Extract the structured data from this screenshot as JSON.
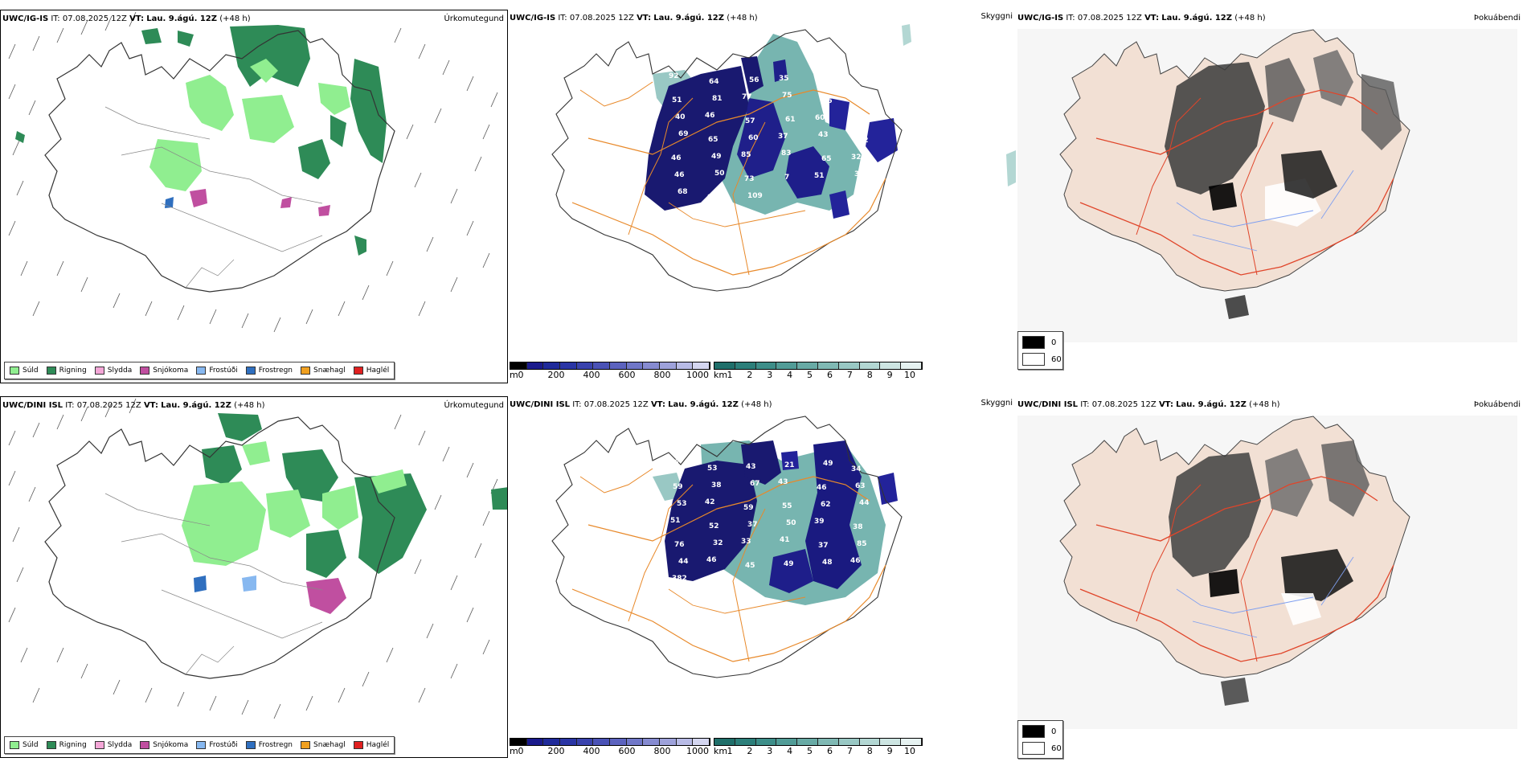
{
  "rows": [
    {
      "model": "UWC/IG-IS",
      "it_label": "IT:",
      "it_value": "07.08.2025 12Z",
      "vt_label": "VT:",
      "vt_value": "Lau. 9.ágú. 12Z",
      "lead": "(+48 h)",
      "labels": [
        "92",
        "64",
        "56",
        "35",
        "36",
        "38",
        "51",
        "81",
        "77",
        "75",
        "46",
        "33",
        "40",
        "46",
        "57",
        "61",
        "60",
        "48",
        "69",
        "65",
        "60",
        "37",
        "43",
        "42",
        "46",
        "49",
        "85",
        "83",
        "65",
        "32",
        "46",
        "50",
        "73",
        "7",
        "51",
        "38",
        "68",
        "94",
        "109"
      ]
    },
    {
      "model": "UWC/DINI ISL",
      "it_label": "IT:",
      "it_value": "07.08.2025 12Z",
      "vt_label": "VT:",
      "vt_value": "Lau. 9.ágú. 12Z",
      "lead": "(+48 h)",
      "labels": [
        "46",
        "53",
        "43",
        "21",
        "49",
        "34",
        "59",
        "38",
        "67",
        "43",
        "46",
        "63",
        "53",
        "42",
        "59",
        "55",
        "62",
        "44",
        "51",
        "52",
        "37",
        "50",
        "39",
        "38",
        "76",
        "32",
        "33",
        "41",
        "37",
        "85",
        "44",
        "46",
        "45",
        "49",
        "48",
        "46",
        "382",
        "75"
      ]
    }
  ],
  "panel_titles": {
    "precip": "Úrkomutegund",
    "visibility": "Skyggni",
    "fog": "Þokuábendi"
  },
  "precip_legend": [
    {
      "label": "Súld",
      "color": "#90ee90"
    },
    {
      "label": "Rigning",
      "color": "#2e8b57"
    },
    {
      "label": "Slydda",
      "color": "#f4a6d7"
    },
    {
      "label": "Snjókoma",
      "color": "#c04fa0"
    },
    {
      "label": "Frostúði",
      "color": "#87b8f0"
    },
    {
      "label": "Frostregn",
      "color": "#2f6fbf"
    },
    {
      "label": "Snæhagl",
      "color": "#f0a020"
    },
    {
      "label": "Haglél",
      "color": "#e02020"
    }
  ],
  "colorbar_m": {
    "unit": "m",
    "ticks": [
      "0",
      "200",
      "400",
      "600",
      "800",
      "1000"
    ],
    "colors": [
      "#000000",
      "#1a1a8c",
      "#1f2a9a",
      "#2a35a5",
      "#3942ad",
      "#4a52b6",
      "#5c63bf",
      "#7077c8",
      "#868bd1",
      "#9ea2db",
      "#b8bbe6",
      "#d4d6f0"
    ]
  },
  "colorbar_km": {
    "unit": "km",
    "ticks": [
      "1",
      "2",
      "3",
      "4",
      "5",
      "6",
      "7",
      "8",
      "9",
      "10"
    ],
    "colors": [
      "#1f6f6a",
      "#2c7f7a",
      "#3d8e89",
      "#519c97",
      "#68aaa5",
      "#80b9b4",
      "#99c8c4",
      "#b3d7d3",
      "#cde5e2",
      "#e6f2f1"
    ]
  },
  "fog_legend": [
    {
      "label": "0",
      "color": "#000000"
    },
    {
      "label": "60",
      "color": "#ffffff"
    }
  ]
}
